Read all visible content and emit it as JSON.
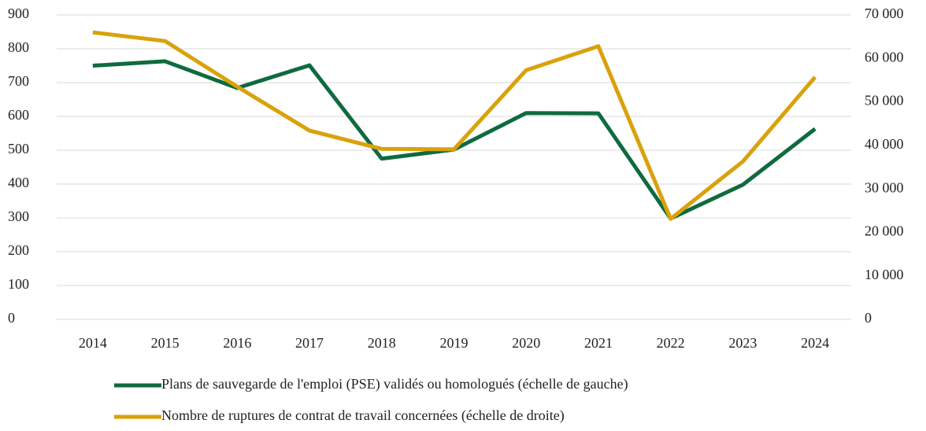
{
  "chart_data": {
    "type": "line",
    "categories": [
      "2014",
      "2015",
      "2016",
      "2017",
      "2018",
      "2019",
      "2020",
      "2021",
      "2022",
      "2023",
      "2024"
    ],
    "series": [
      {
        "name": "Plans de sauvegarde de l'emploi (PSE) validés ou homologués (échelle de gauche)",
        "color": "#0e6b3f",
        "values": [
          750,
          763,
          684,
          751,
          475,
          502,
          610,
          609,
          298,
          398,
          563
        ]
      },
      {
        "name": "Nombre de ruptures de contrat de travail concernées (échelle de droite)",
        "color": "#d9a20b",
        "axis": "y2",
        "values": [
          66000,
          64000,
          53500,
          43400,
          39200,
          39100,
          57300,
          62800,
          23100,
          36300,
          55700
        ]
      }
    ],
    "ylim": [
      0,
      900
    ],
    "yticks": [
      0,
      100,
      200,
      300,
      400,
      500,
      600,
      700,
      800,
      900
    ],
    "y2lim": [
      0,
      70000
    ],
    "y2ticks": [
      0,
      {
        "value": 10000,
        "label": "10 000"
      },
      {
        "value": 20000,
        "label": "20 000"
      },
      {
        "value": 30000,
        "label": "30 000"
      },
      {
        "value": 40000,
        "label": "40 000"
      },
      {
        "value": 50000,
        "label": "50 000"
      },
      {
        "value": 60000,
        "label": "60 000"
      },
      {
        "value": 70000,
        "label": "70 000"
      }
    ],
    "grid": true,
    "legend": "bottom"
  }
}
